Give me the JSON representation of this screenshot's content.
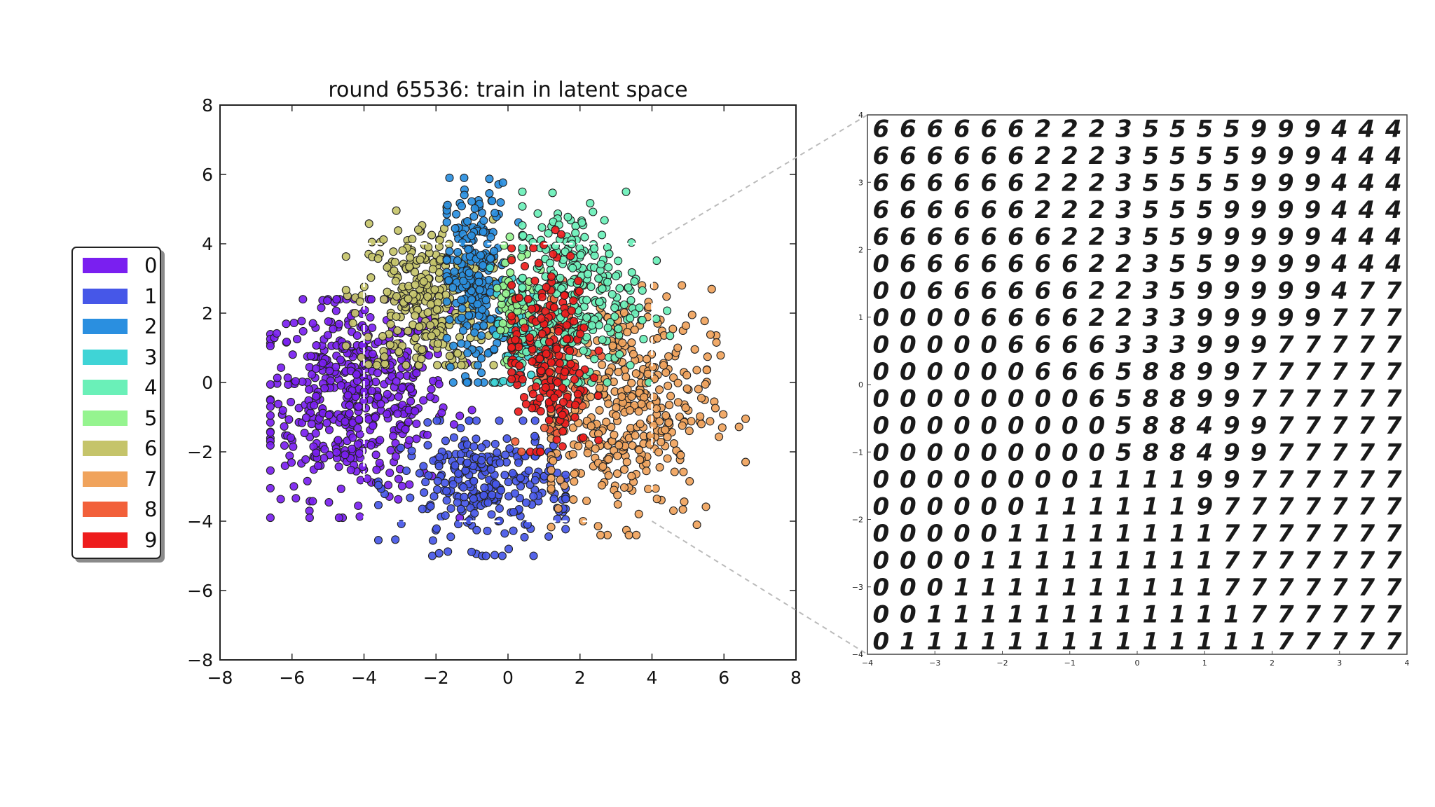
{
  "chart_data": [
    {
      "type": "scatter",
      "title": "round 65536: train in latent space",
      "xlabel": "",
      "ylabel": "",
      "xlim": [
        -8,
        8
      ],
      "ylim": [
        -8,
        8
      ],
      "xticks": [
        "−8",
        "−6",
        "−4",
        "−2",
        "0",
        "2",
        "4",
        "6",
        "8"
      ],
      "yticks": [
        "8",
        "6",
        "4",
        "2",
        "0",
        "−2",
        "−4",
        "−6",
        "−8"
      ],
      "grid": false,
      "legend_position": "left, outside plot",
      "zoom_region": {
        "x": [
          -4,
          4
        ],
        "y": [
          -4,
          4
        ]
      },
      "series": [
        {
          "name": "0",
          "color": "#7a1ff0",
          "center": [
            -4.2,
            -0.4
          ],
          "approx_extent_x": [
            -6.6,
            -1.0
          ],
          "approx_extent_y": [
            -3.9,
            2.4
          ]
        },
        {
          "name": "1",
          "color": "#4657e8",
          "center": [
            -0.6,
            -3.0
          ],
          "approx_extent_x": [
            -3.6,
            1.6
          ],
          "approx_extent_y": [
            -5.0,
            -1.1
          ]
        },
        {
          "name": "2",
          "color": "#2a8fe0",
          "center": [
            -0.9,
            3.0
          ],
          "approx_extent_x": [
            -1.7,
            0.3
          ],
          "approx_extent_y": [
            0.0,
            5.9
          ]
        },
        {
          "name": "3",
          "color": "#3fd4d6",
          "center": [
            0.3,
            1.3
          ],
          "approx_extent_x": [
            -0.5,
            1.2
          ],
          "approx_extent_y": [
            0.0,
            4.2
          ]
        },
        {
          "name": "4",
          "color": "#6af0b8",
          "center": [
            1.8,
            2.6
          ],
          "approx_extent_x": [
            0.4,
            4.5
          ],
          "approx_extent_y": [
            0.0,
            5.5
          ]
        },
        {
          "name": "5",
          "color": "#95f48f",
          "center": [
            0.2,
            2.4
          ],
          "approx_extent_x": [
            -0.3,
            1.0
          ],
          "approx_extent_y": [
            0.5,
            4.2
          ]
        },
        {
          "name": "6",
          "color": "#c5c46a",
          "center": [
            -2.3,
            2.4
          ],
          "approx_extent_x": [
            -4.5,
            -0.4
          ],
          "approx_extent_y": [
            0.5,
            5.5
          ]
        },
        {
          "name": "7",
          "color": "#f0a35c",
          "center": [
            3.2,
            -0.6
          ],
          "approx_extent_x": [
            1.2,
            6.6
          ],
          "approx_extent_y": [
            -4.4,
            2.8
          ]
        },
        {
          "name": "8",
          "color": "#f2603a",
          "center": [
            1.2,
            0.8
          ],
          "approx_extent_x": [
            0.2,
            2.6
          ],
          "approx_extent_y": [
            -2.0,
            4.2
          ]
        },
        {
          "name": "9",
          "color": "#ee1c1c",
          "center": [
            1.1,
            0.8
          ],
          "approx_extent_x": [
            0.1,
            2.7
          ],
          "approx_extent_y": [
            -2.0,
            4.4
          ]
        }
      ]
    },
    {
      "type": "heatmap",
      "description_type": "decoded digit manifold grid",
      "xlim": [
        -4,
        4
      ],
      "ylim": [
        -4,
        4
      ],
      "xticks": [
        "−4",
        "−3",
        "−2",
        "−1",
        "0",
        "1",
        "2",
        "3",
        "4"
      ],
      "yticks": [
        "4",
        "3",
        "2",
        "1",
        "0",
        "−1",
        "−2",
        "−3",
        "−4"
      ],
      "grid_rows": [
        "66666622235555999444",
        "66666622235555999444",
        "66666622235555999444",
        "66666622235559999444",
        "66666662235599999444",
        "06666666223559999444",
        "00666666223599999477",
        "00006666223399999777",
        "00000666633399977777",
        "00000066658899777777",
        "00000000658899777777",
        "00000000058849977777",
        "00000000058849977777",
        "00000000111199777777",
        "00000011111197777777",
        "00000111111117777777",
        "00001111111117777777",
        "00011111111117777777",
        "00111111111111777777",
        "01111111111111177777"
      ]
    }
  ]
}
